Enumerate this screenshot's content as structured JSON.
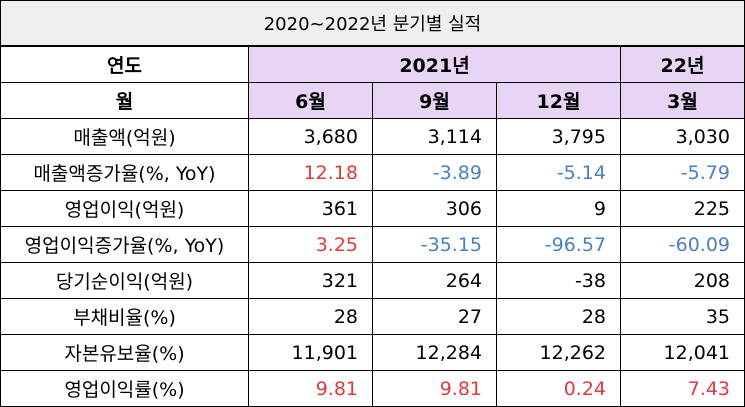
{
  "title": "2020~2022년 분기별 실적",
  "header": {
    "year_label": "연도",
    "year_2021": "2021년",
    "year_22": "22년",
    "month_label": "월",
    "months": [
      "6월",
      "9월",
      "12월",
      "3월"
    ]
  },
  "rows": [
    {
      "label": "매출액(억원)",
      "values": [
        "3,680",
        "3,114",
        "3,795",
        "3,030"
      ],
      "colors": [
        "black",
        "black",
        "black",
        "black"
      ]
    },
    {
      "label": "매출액증가율(%, YoY)",
      "values": [
        "12.18",
        "-3.89",
        "-5.14",
        "-5.79"
      ],
      "colors": [
        "red",
        "blue",
        "blue",
        "blue"
      ]
    },
    {
      "label": "영업이익(억원)",
      "values": [
        "361",
        "306",
        "9",
        "225"
      ],
      "colors": [
        "black",
        "black",
        "black",
        "black"
      ]
    },
    {
      "label": "영업이익증가율(%, YoY)",
      "values": [
        "3.25",
        "-35.15",
        "-96.57",
        "-60.09"
      ],
      "colors": [
        "red",
        "blue",
        "blue",
        "blue"
      ]
    },
    {
      "label": "당기순이익(억원)",
      "values": [
        "321",
        "264",
        "-38",
        "208"
      ],
      "colors": [
        "black",
        "black",
        "black",
        "black"
      ]
    },
    {
      "label": "부채비율(%)",
      "values": [
        "28",
        "27",
        "28",
        "35"
      ],
      "colors": [
        "black",
        "black",
        "black",
        "black"
      ]
    },
    {
      "label": "자본유보율(%)",
      "values": [
        "11,901",
        "12,284",
        "12,262",
        "12,041"
      ],
      "colors": [
        "black",
        "black",
        "black",
        "black"
      ]
    },
    {
      "label": "영업이익률(%)",
      "values": [
        "9.81",
        "9.81",
        "0.24",
        "7.43"
      ],
      "colors": [
        "red",
        "red",
        "red",
        "red"
      ]
    }
  ],
  "colors": {
    "header_purple": "#e8d5f5",
    "title_gray": "#efefef",
    "positive_red": "#e03a3a",
    "negative_blue": "#4a7fc1"
  }
}
